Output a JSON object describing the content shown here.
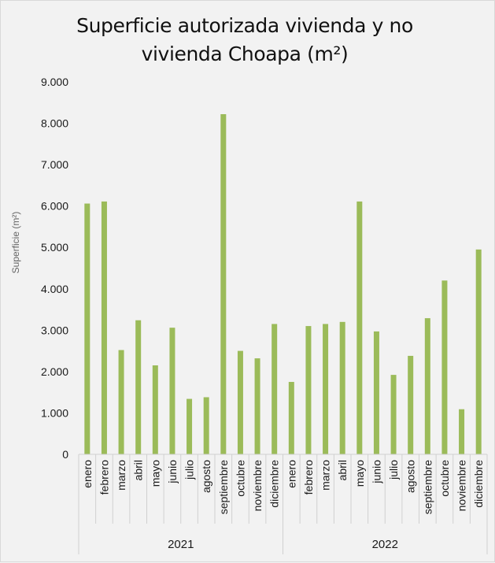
{
  "chart_data": {
    "type": "bar",
    "title_lines": [
      "Superficie autorizada vivienda y no",
      "vivienda Choapa (m²)"
    ],
    "ylabel": "Superficie (m²)",
    "xlabel": "",
    "ylim": [
      0,
      9000
    ],
    "ytick_values": [
      0,
      1000,
      2000,
      3000,
      4000,
      5000,
      6000,
      7000,
      8000,
      9000
    ],
    "ytick_labels": [
      "0",
      "1.000",
      "2.000",
      "3.000",
      "4.000",
      "5.000",
      "6.000",
      "7.000",
      "8.000",
      "9.000"
    ],
    "grid": false,
    "bar_color": "#9bbb59",
    "groups": [
      {
        "label": "2021",
        "categories": [
          "enero",
          "febrero",
          "marzo",
          "abril",
          "mayo",
          "junio",
          "julio",
          "agosto",
          "septiembre",
          "octubre",
          "noviembre",
          "diciembre"
        ]
      },
      {
        "label": "2022",
        "categories": [
          "enero",
          "febrero",
          "marzo",
          "abril",
          "mayo",
          "junio",
          "julio",
          "agosto",
          "septiembre",
          "octubre",
          "noviembre",
          "diciembre"
        ]
      }
    ],
    "values": [
      6060,
      6110,
      2520,
      3240,
      2150,
      3060,
      1340,
      1380,
      8220,
      2500,
      2320,
      3150,
      1750,
      3100,
      3150,
      3200,
      6110,
      2970,
      1920,
      2380,
      3290,
      4200,
      1090,
      4950
    ]
  }
}
